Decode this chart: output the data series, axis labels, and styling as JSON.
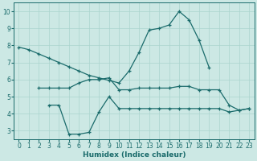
{
  "xlabel": "Humidex (Indice chaleur)",
  "bg_color": "#cce8e4",
  "grid_color": "#aad4ce",
  "line_color": "#1a6b6b",
  "xlim": [
    -0.5,
    23.5
  ],
  "ylim": [
    2.5,
    10.5
  ],
  "yticks": [
    3,
    4,
    5,
    6,
    7,
    8,
    9,
    10
  ],
  "xticks": [
    0,
    1,
    2,
    3,
    4,
    5,
    6,
    7,
    8,
    9,
    10,
    11,
    12,
    13,
    14,
    15,
    16,
    17,
    18,
    19,
    20,
    21,
    22,
    23
  ],
  "line1_x": [
    0,
    1,
    2,
    3,
    4,
    5,
    6,
    7,
    8,
    9,
    10,
    11,
    12,
    13,
    14,
    15,
    16,
    17,
    18,
    19
  ],
  "line1_y": [
    7.9,
    7.75,
    7.5,
    7.25,
    7.0,
    6.75,
    6.5,
    6.25,
    6.1,
    5.95,
    5.8,
    6.5,
    7.6,
    8.9,
    9.0,
    9.2,
    10.0,
    9.5,
    8.3,
    6.7
  ],
  "line2_x": [
    2,
    3,
    4,
    5,
    6,
    7,
    8,
    9,
    10,
    11,
    12,
    13,
    14,
    15,
    16,
    17,
    18,
    19,
    20,
    21,
    22,
    23
  ],
  "line2_y": [
    5.5,
    5.5,
    5.5,
    5.5,
    5.8,
    6.0,
    6.0,
    6.1,
    5.4,
    5.4,
    5.5,
    5.5,
    5.5,
    5.5,
    5.6,
    5.6,
    5.4,
    5.4,
    5.4,
    4.5,
    4.2,
    4.3
  ],
  "line3_x": [
    3,
    4,
    5,
    6,
    7,
    8,
    9,
    10,
    11,
    12,
    13,
    14,
    15,
    16,
    17,
    18,
    19,
    20,
    21,
    22,
    23
  ],
  "line3_y": [
    4.5,
    4.5,
    2.8,
    2.8,
    2.9,
    4.1,
    5.0,
    4.3,
    4.3,
    4.3,
    4.3,
    4.3,
    4.3,
    4.3,
    4.3,
    4.3,
    4.3,
    4.3,
    4.1,
    4.2,
    4.3
  ],
  "xlabel_fontsize": 6.5,
  "tick_fontsize": 5.5,
  "lw": 0.9,
  "ms": 3
}
